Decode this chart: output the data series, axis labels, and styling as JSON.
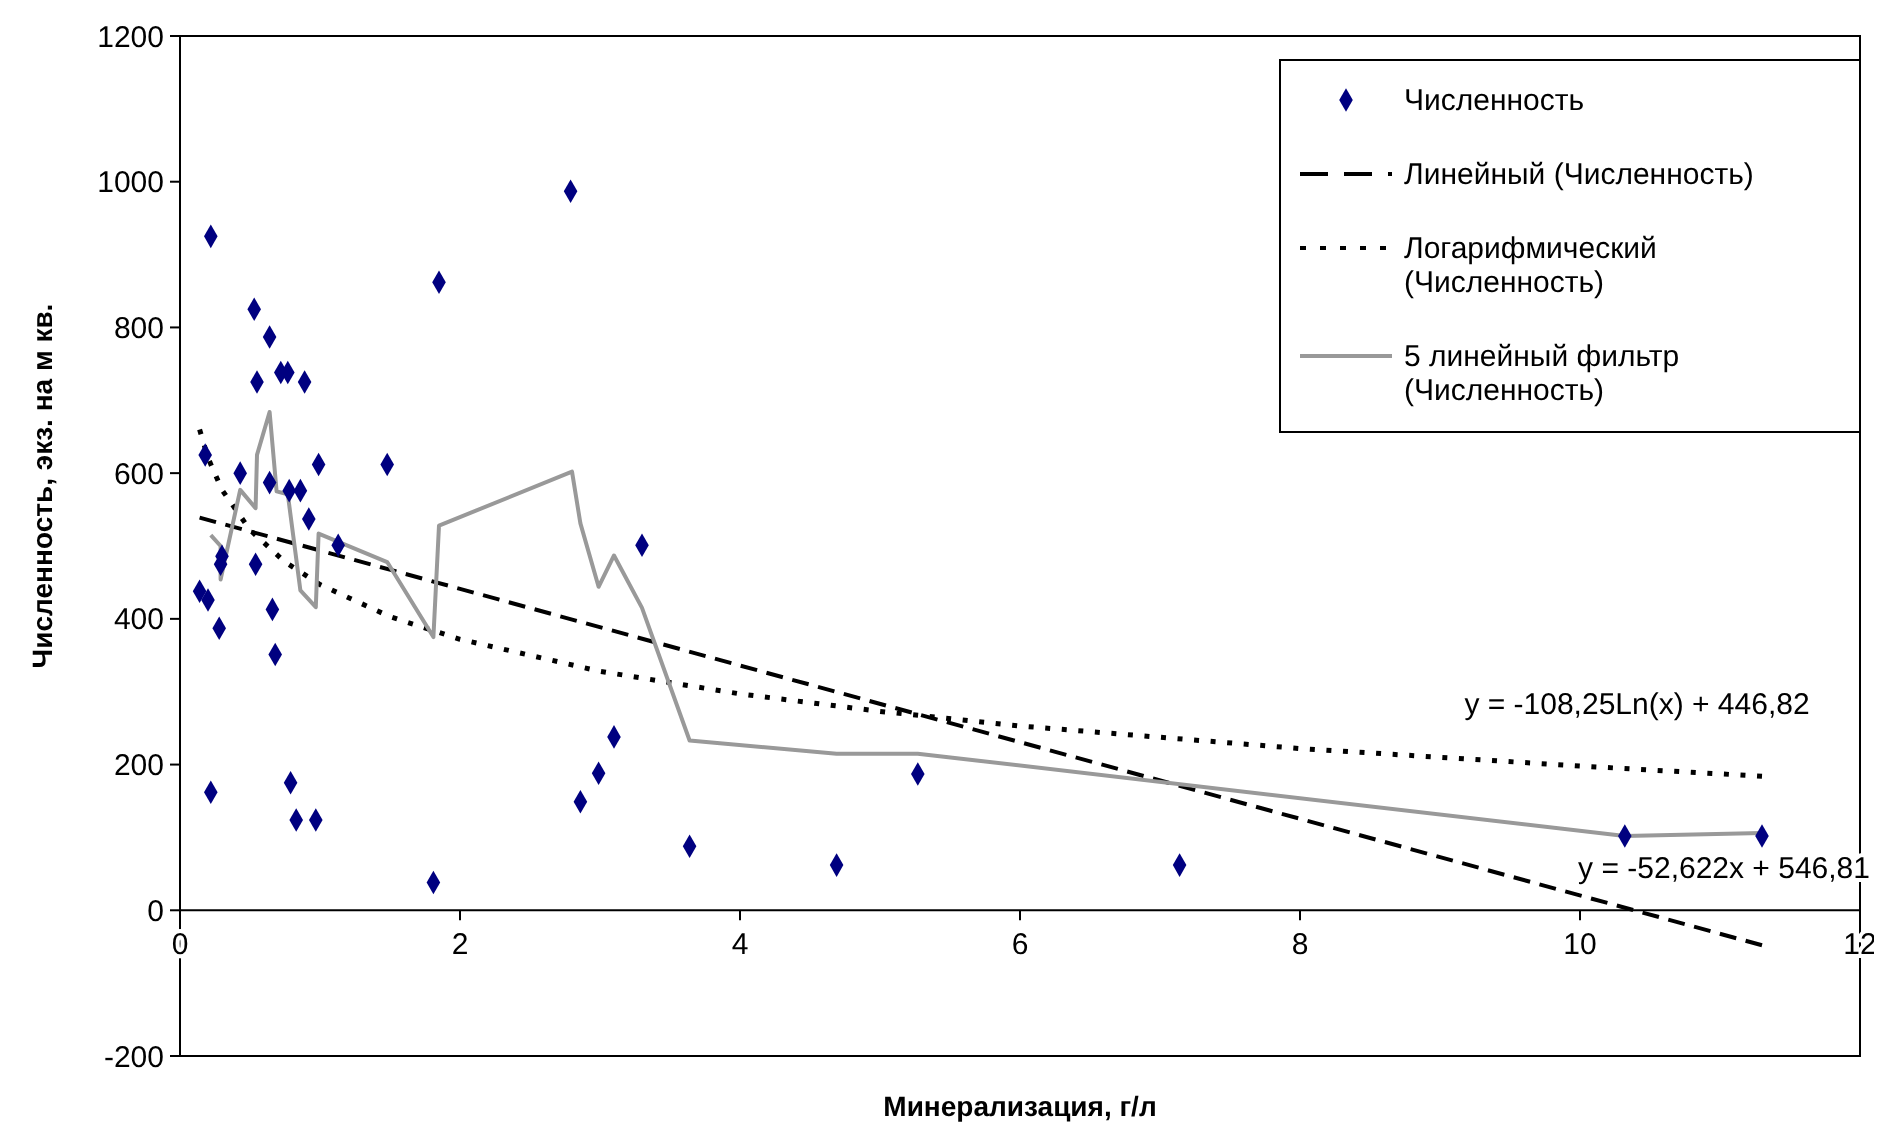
{
  "chart_data": {
    "type": "scatter",
    "xlabel": "Минерализация, г/л",
    "ylabel": "Численность, экз. на м кв.",
    "xlim": [
      0,
      12
    ],
    "xticks": [
      0,
      2,
      4,
      6,
      8,
      10,
      12
    ],
    "ylim": [
      -200,
      1200
    ],
    "yticks": [
      -200,
      0,
      200,
      400,
      600,
      800,
      1000,
      1200
    ],
    "grid": false,
    "legend": "top right",
    "series": [
      {
        "name": "Численность",
        "marker": "diamond",
        "color": "#000080",
        "x": [
          0.22,
          0.53,
          0.64,
          0.55,
          0.72,
          0.77,
          0.89,
          1.85,
          0.18,
          0.43,
          0.99,
          1.48,
          0.64,
          0.78,
          0.86,
          0.92,
          1.13,
          0.3,
          0.29,
          0.54,
          0.14,
          0.2,
          0.66,
          0.28,
          0.68,
          0.22,
          0.79,
          0.83,
          0.97,
          1.81,
          2.79,
          3.3,
          3.1,
          2.99,
          2.86,
          3.64,
          4.69,
          5.27,
          7.14,
          10.32,
          11.3
        ],
        "values": [
          925,
          825,
          787,
          725,
          738,
          738,
          725,
          862,
          625,
          600,
          612,
          612,
          587,
          576,
          576,
          537,
          501,
          486,
          475,
          475,
          438,
          426,
          413,
          387,
          351,
          162,
          175,
          124,
          124,
          38,
          987,
          501,
          238,
          188,
          149,
          88,
          62,
          187,
          62,
          102,
          102
        ]
      },
      {
        "name": "Линейный (Численность)",
        "type": "line",
        "line_style": "dashed",
        "color": "#000000",
        "x": [
          0.14,
          11.3
        ],
        "values": [
          539,
          -48
        ]
      },
      {
        "name": "Логарифмический (Численность)",
        "type": "line",
        "line_style": "dotted",
        "color": "#000000",
        "x": [
          0.14,
          0.2,
          0.3,
          0.5,
          0.75,
          1,
          1.5,
          2,
          3,
          4,
          5,
          6,
          8,
          10,
          11.3
        ],
        "values": [
          660,
          621,
          577,
          522,
          478,
          447,
          403,
          372,
          328,
          297,
          273,
          253,
          222,
          198,
          184
        ]
      },
      {
        "name": "5 линейный фильтр (Численность)",
        "type": "line",
        "line_style": "solid",
        "color": "#999999",
        "x": [
          0.22,
          0.29,
          0.29,
          0.43,
          0.54,
          0.55,
          0.64,
          0.69,
          0.77,
          0.86,
          0.97,
          0.99,
          1.48,
          1.81,
          1.85,
          2.8,
          2.86,
          2.99,
          3.1,
          3.3,
          3.64,
          4.69,
          5.27,
          10.32,
          11.3
        ],
        "values": [
          515,
          500,
          454,
          577,
          552,
          625,
          684,
          575,
          571,
          439,
          416,
          517,
          478,
          375,
          528,
          602,
          531,
          444,
          487,
          415,
          233,
          215,
          215,
          102,
          106
        ]
      }
    ],
    "annotations": [
      "y = -108,25Ln(x) + 446,82",
      "y = -52,622x + 546,81"
    ]
  }
}
